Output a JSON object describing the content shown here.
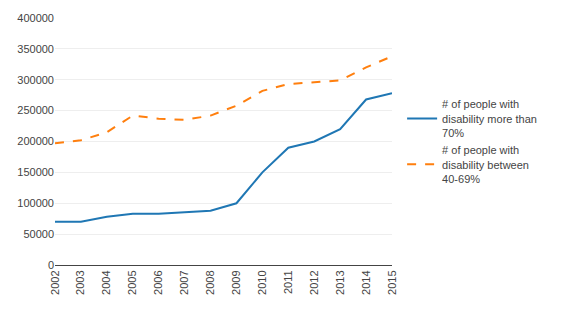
{
  "chart_data": {
    "type": "line",
    "x": [
      2002,
      2003,
      2004,
      2005,
      2006,
      2007,
      2008,
      2009,
      2010,
      2011,
      2012,
      2013,
      2014,
      2015
    ],
    "series": [
      {
        "name": "# of people with\ndisability more than\n70%",
        "line_style": "solid",
        "values": [
          70000,
          70000,
          78000,
          83000,
          83000,
          85000,
          88000,
          100000,
          150000,
          190000,
          200000,
          220000,
          268000,
          278000
        ]
      },
      {
        "name": "# of people with\ndisability between\n40-69%",
        "line_style": "dashed",
        "values": [
          197000,
          202000,
          215000,
          242000,
          237000,
          235000,
          242000,
          258000,
          282000,
          293000,
          296000,
          299000,
          320000,
          338000
        ]
      }
    ],
    "xlim": [
      2002,
      2015
    ],
    "xticks": [
      2002,
      2003,
      2004,
      2005,
      2006,
      2007,
      2008,
      2009,
      2010,
      2011,
      2012,
      2013,
      2014,
      2015
    ],
    "ylim": [
      0,
      400000
    ],
    "yticks": [
      0,
      50000,
      100000,
      150000,
      200000,
      250000,
      300000,
      350000,
      400000
    ],
    "grid": "y",
    "legend": "right"
  }
}
